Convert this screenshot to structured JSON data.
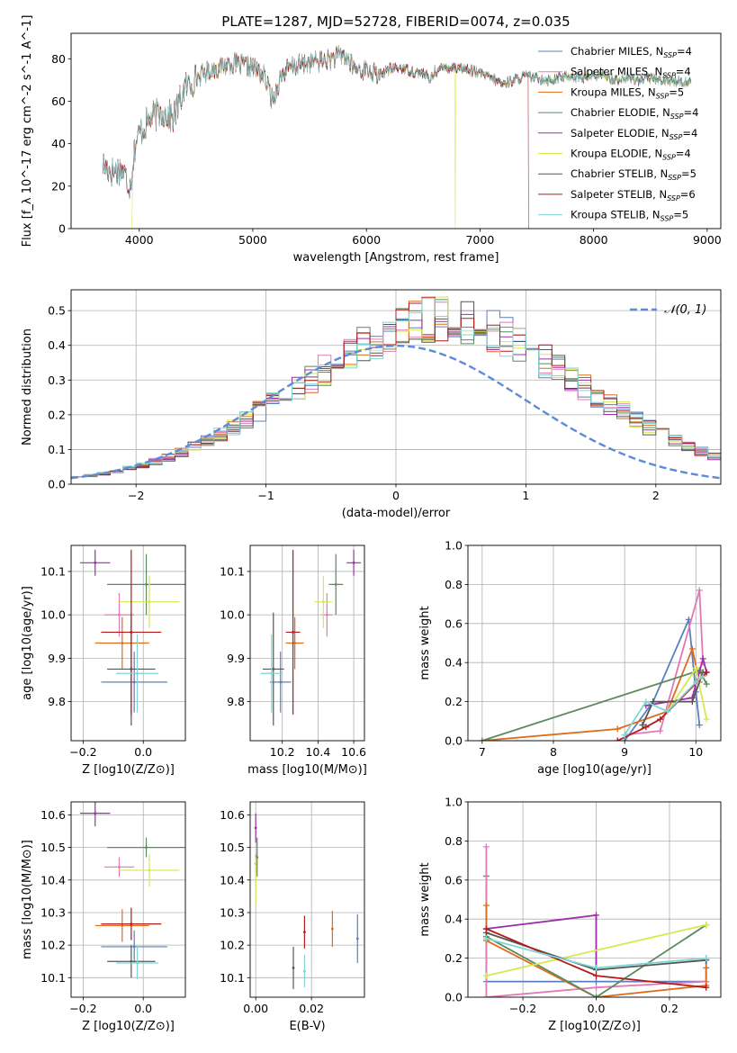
{
  "figure": {
    "title": "PLATE=1287, MJD=52728, FIBERID=0074, z=0.035"
  },
  "palette": {
    "Chabrier MILES": "#5b7fbd",
    "Salpeter MILES": "#e17ab4",
    "Kroupa MILES": "#dd6d1d",
    "Chabrier ELODIE": "#5a8a5e",
    "Salpeter ELODIE": "#9a2fa8",
    "Kroupa ELODIE": "#d7e84e",
    "Chabrier STELIB": "#555555",
    "Salpeter STELIB": "#b31b1b",
    "Kroupa STELIB": "#7fd6d2",
    "normal_curve": "#5b8bd9"
  },
  "chart_data": [
    {
      "id": "spectrum",
      "type": "line",
      "xlabel": "wavelength [Angstrom, rest frame]",
      "ylabel": "Flux [f_λ 10^-17 erg cm^-2 s^-1 A^-1]",
      "xlim": [
        3400,
        9120
      ],
      "ylim": [
        0,
        92
      ],
      "xticks": [
        4000,
        5000,
        6000,
        7000,
        8000,
        9000
      ],
      "yticks": [
        0,
        20,
        40,
        60,
        80
      ],
      "legend_position": "upper right",
      "grid": false,
      "legend": [
        {
          "name": "Chabrier MILES",
          "ssp": "4"
        },
        {
          "name": "Salpeter MILES",
          "ssp": "4"
        },
        {
          "name": "Kroupa MILES",
          "ssp": "5"
        },
        {
          "name": "Chabrier ELODIE",
          "ssp": "4"
        },
        {
          "name": "Salpeter ELODIE",
          "ssp": "4"
        },
        {
          "name": "Kroupa ELODIE",
          "ssp": "4"
        },
        {
          "name": "Chabrier STELIB",
          "ssp": "5"
        },
        {
          "name": "Salpeter STELIB",
          "ssp": "6"
        },
        {
          "name": "Kroupa STELIB",
          "ssp": "5"
        }
      ],
      "continuum": [
        [
          3680,
          30
        ],
        [
          3750,
          27
        ],
        [
          3850,
          28
        ],
        [
          3920,
          20
        ],
        [
          3960,
          38
        ],
        [
          4000,
          45
        ],
        [
          4100,
          52
        ],
        [
          4200,
          55
        ],
        [
          4300,
          52
        ],
        [
          4400,
          66
        ],
        [
          4500,
          71
        ],
        [
          4600,
          74
        ],
        [
          4700,
          76
        ],
        [
          4800,
          78
        ],
        [
          4900,
          77
        ],
        [
          5000,
          76
        ],
        [
          5100,
          72
        ],
        [
          5175,
          60
        ],
        [
          5250,
          72
        ],
        [
          5300,
          75
        ],
        [
          5400,
          77
        ],
        [
          5500,
          78
        ],
        [
          5600,
          79
        ],
        [
          5700,
          80
        ],
        [
          5800,
          82
        ],
        [
          5900,
          75
        ],
        [
          6000,
          75
        ],
        [
          6100,
          72
        ],
        [
          6200,
          75
        ],
        [
          6300,
          76
        ],
        [
          6400,
          74
        ],
        [
          6500,
          73
        ],
        [
          6563,
          70
        ],
        [
          6600,
          74
        ],
        [
          6700,
          76
        ],
        [
          6800,
          76
        ],
        [
          6900,
          75
        ],
        [
          7000,
          73
        ],
        [
          7100,
          71
        ],
        [
          7200,
          68
        ],
        [
          7300,
          70
        ],
        [
          7400,
          72
        ],
        [
          7500,
          71
        ],
        [
          7600,
          70
        ],
        [
          7700,
          71
        ],
        [
          7800,
          72
        ],
        [
          7900,
          71
        ],
        [
          8000,
          72
        ],
        [
          8100,
          72
        ],
        [
          8200,
          70
        ],
        [
          8300,
          71
        ],
        [
          8400,
          70
        ],
        [
          8500,
          71
        ],
        [
          8600,
          70
        ],
        [
          8700,
          70
        ],
        [
          8800,
          69
        ],
        [
          8860,
          70
        ]
      ],
      "ends_um": {
        "Kroupa ELODIE": 3930,
        "Salpeter STELIB": 7430
      }
    },
    {
      "id": "residuals",
      "type": "histogram",
      "xlabel": "(data-model)/error",
      "ylabel": "Normed distribution",
      "xlim": [
        -2.5,
        2.5
      ],
      "ylim": [
        0,
        0.56
      ],
      "xticks": [
        -2,
        -1,
        0,
        1,
        2
      ],
      "yticks": [
        0.0,
        0.1,
        0.2,
        0.3,
        0.4,
        0.5
      ],
      "grid": true,
      "legend_position": "upper right",
      "legend": [
        {
          "name": "𝒩(0, 1)"
        }
      ],
      "bin_width": 0.1,
      "bin_start": -2.5,
      "base_values": [
        0.022,
        0.025,
        0.03,
        0.037,
        0.045,
        0.054,
        0.065,
        0.077,
        0.092,
        0.108,
        0.125,
        0.144,
        0.165,
        0.187,
        0.21,
        0.234,
        0.258,
        0.282,
        0.306,
        0.329,
        0.35,
        0.375,
        0.398,
        0.42,
        0.438,
        0.455,
        0.467,
        0.475,
        0.478,
        0.476,
        0.47,
        0.459,
        0.443,
        0.425,
        0.403,
        0.38,
        0.356,
        0.331,
        0.306,
        0.28,
        0.256,
        0.232,
        0.208,
        0.186,
        0.165,
        0.145,
        0.127,
        0.111,
        0.095,
        0.081
      ]
    },
    {
      "id": "age-vs-Z",
      "type": "scatter",
      "xlabel": "Z [log10(Z/Z⊙)]",
      "ylabel": "age  [log10(age/yr)]",
      "xlim": [
        -0.24,
        0.14
      ],
      "ylim": [
        9.71,
        10.16
      ],
      "xticks": [
        -0.2,
        0.0
      ],
      "yticks": [
        9.8,
        9.9,
        10.0,
        10.1
      ],
      "grid": true,
      "points": [
        {
          "model": "Chabrier MILES",
          "x": -0.03,
          "xerr": 0.11,
          "y": 9.845,
          "yerr": 0.07
        },
        {
          "model": "Salpeter MILES",
          "x": -0.08,
          "xerr": 0.05,
          "y": 10.0,
          "yerr": 0.05
        },
        {
          "model": "Kroupa MILES",
          "x": -0.07,
          "xerr": 0.09,
          "y": 9.935,
          "yerr": 0.06
        },
        {
          "model": "Chabrier ELODIE",
          "x": 0.01,
          "xerr": 0.13,
          "y": 10.07,
          "yerr": 0.07
        },
        {
          "model": "Salpeter ELODIE",
          "x": -0.16,
          "xerr": 0.05,
          "y": 10.12,
          "yerr": 0.03
        },
        {
          "model": "Kroupa ELODIE",
          "x": 0.02,
          "xerr": 0.1,
          "y": 10.03,
          "yerr": 0.06
        },
        {
          "model": "Chabrier STELIB",
          "x": -0.04,
          "xerr": 0.08,
          "y": 9.875,
          "yerr": 0.13
        },
        {
          "model": "Salpeter STELIB",
          "x": -0.04,
          "xerr": 0.1,
          "y": 9.96,
          "yerr": 0.19
        },
        {
          "model": "Kroupa STELIB",
          "x": -0.02,
          "xerr": 0.07,
          "y": 9.865,
          "yerr": 0.09
        }
      ]
    },
    {
      "id": "age-vs-mass",
      "type": "scatter",
      "xlabel": "mass [log10(M/M⊙)]",
      "ylabel": "",
      "xlim": [
        10.02,
        10.66
      ],
      "ylim": [
        9.71,
        10.16
      ],
      "xticks": [
        10.2,
        10.4,
        10.6
      ],
      "yticks": [
        9.8,
        9.9,
        10.0,
        10.1
      ],
      "grid": true,
      "points": [
        {
          "model": "Chabrier MILES",
          "x": 10.19,
          "xerr": 0.06,
          "y": 9.845,
          "yerr": 0.07
        },
        {
          "model": "Salpeter MILES",
          "x": 10.45,
          "xerr": 0.03,
          "y": 10.0,
          "yerr": 0.05
        },
        {
          "model": "Kroupa MILES",
          "x": 10.27,
          "xerr": 0.05,
          "y": 9.935,
          "yerr": 0.06
        },
        {
          "model": "Chabrier ELODIE",
          "x": 10.5,
          "xerr": 0.04,
          "y": 10.07,
          "yerr": 0.07
        },
        {
          "model": "Salpeter ELODIE",
          "x": 10.6,
          "xerr": 0.04,
          "y": 10.12,
          "yerr": 0.03
        },
        {
          "model": "Kroupa ELODIE",
          "x": 10.43,
          "xerr": 0.05,
          "y": 10.03,
          "yerr": 0.06
        },
        {
          "model": "Chabrier STELIB",
          "x": 10.15,
          "xerr": 0.06,
          "y": 9.875,
          "yerr": 0.13
        },
        {
          "model": "Salpeter STELIB",
          "x": 10.26,
          "xerr": 0.04,
          "y": 9.96,
          "yerr": 0.19
        },
        {
          "model": "Kroupa STELIB",
          "x": 10.14,
          "xerr": 0.06,
          "y": 9.865,
          "yerr": 0.09
        }
      ]
    },
    {
      "id": "mass-weight-vs-age",
      "type": "line",
      "xlabel": "age  [log10(age/yr)]",
      "ylabel": "mass weight",
      "xlim": [
        6.8,
        10.35
      ],
      "ylim": [
        0,
        1
      ],
      "xticks": [
        7,
        8,
        9,
        10
      ],
      "yticks": [
        0.0,
        0.2,
        0.4,
        0.6,
        0.8,
        1.0
      ],
      "grid": true,
      "series": [
        {
          "model": "Chabrier MILES",
          "x": [
            9.0,
            9.4,
            9.9,
            10.0,
            10.05
          ],
          "y": [
            0.0,
            0.2,
            0.62,
            0.25,
            0.08
          ]
        },
        {
          "model": "Salpeter MILES",
          "x": [
            9.0,
            9.5,
            10.05,
            10.1
          ],
          "y": [
            0.03,
            0.05,
            0.77,
            0.4
          ]
        },
        {
          "model": "Kroupa MILES",
          "x": [
            7.0,
            8.9,
            9.6,
            9.95,
            10.05
          ],
          "y": [
            0.0,
            0.06,
            0.15,
            0.47,
            0.3
          ]
        },
        {
          "model": "Chabrier ELODIE",
          "x": [
            7.0,
            10.05,
            10.15
          ],
          "y": [
            0.0,
            0.36,
            0.29
          ]
        },
        {
          "model": "Salpeter ELODIE",
          "x": [
            9.3,
            9.95,
            10.1,
            10.15
          ],
          "y": [
            0.18,
            0.22,
            0.42,
            0.35
          ]
        },
        {
          "model": "Kroupa ELODIE",
          "x": [
            9.6,
            10.0,
            10.15
          ],
          "y": [
            0.15,
            0.37,
            0.11
          ]
        },
        {
          "model": "Chabrier STELIB",
          "x": [
            9.25,
            9.4,
            9.95,
            10.1
          ],
          "y": [
            0.08,
            0.2,
            0.2,
            0.35
          ]
        },
        {
          "model": "Salpeter STELIB",
          "x": [
            8.9,
            9.3,
            9.5,
            10.1,
            10.15
          ],
          "y": [
            0.0,
            0.07,
            0.11,
            0.33,
            0.35
          ]
        },
        {
          "model": "Kroupa STELIB",
          "x": [
            9.0,
            9.3,
            9.6,
            10.0,
            10.1
          ],
          "y": [
            0.03,
            0.2,
            0.15,
            0.3,
            0.33
          ]
        }
      ]
    },
    {
      "id": "mass-vs-Z",
      "type": "scatter",
      "xlabel": "Z [log10(Z/Z⊙)]",
      "ylabel": "mass [log10(M/M⊙)]",
      "xlim": [
        -0.24,
        0.14
      ],
      "ylim": [
        10.04,
        10.64
      ],
      "xticks": [
        -0.2,
        0.0
      ],
      "yticks": [
        10.1,
        10.2,
        10.3,
        10.4,
        10.5,
        10.6
      ],
      "grid": true,
      "points": [
        {
          "model": "Chabrier MILES",
          "x": -0.03,
          "xerr": 0.11,
          "y": 10.195,
          "yerr": 0.05
        },
        {
          "model": "Salpeter MILES",
          "x": -0.08,
          "xerr": 0.05,
          "y": 10.44,
          "yerr": 0.03
        },
        {
          "model": "Kroupa MILES",
          "x": -0.07,
          "xerr": 0.09,
          "y": 10.26,
          "yerr": 0.05
        },
        {
          "model": "Chabrier ELODIE",
          "x": 0.01,
          "xerr": 0.13,
          "y": 10.5,
          "yerr": 0.03
        },
        {
          "model": "Salpeter ELODIE",
          "x": -0.16,
          "xerr": 0.05,
          "y": 10.605,
          "yerr": 0.04
        },
        {
          "model": "Kroupa ELODIE",
          "x": 0.02,
          "xerr": 0.1,
          "y": 10.43,
          "yerr": 0.05
        },
        {
          "model": "Chabrier STELIB",
          "x": -0.04,
          "xerr": 0.08,
          "y": 10.15,
          "yerr": 0.05
        },
        {
          "model": "Salpeter STELIB",
          "x": -0.04,
          "xerr": 0.1,
          "y": 10.265,
          "yerr": 0.05
        },
        {
          "model": "Kroupa STELIB",
          "x": -0.02,
          "xerr": 0.07,
          "y": 10.145,
          "yerr": 0.05
        }
      ]
    },
    {
      "id": "mass-vs-ebv",
      "type": "scatter",
      "xlabel": "E(B-V)",
      "ylabel": "",
      "xlim": [
        -0.002,
        0.039
      ],
      "ylim": [
        10.04,
        10.64
      ],
      "xticks": [
        0.0,
        0.02
      ],
      "yticks": [
        10.1,
        10.2,
        10.3,
        10.4,
        10.5,
        10.6
      ],
      "grid": true,
      "points": [
        {
          "model": "Chabrier MILES",
          "x": 0.0365,
          "xerr": 0.0,
          "y": 10.22,
          "yerr": 0.075
        },
        {
          "model": "Salpeter MILES",
          "x": 0.0,
          "xerr": 0.0,
          "y": 10.45,
          "yerr": 0.03
        },
        {
          "model": "Kroupa MILES",
          "x": 0.0275,
          "xerr": 0.0,
          "y": 10.25,
          "yerr": 0.055
        },
        {
          "model": "Chabrier ELODIE",
          "x": 0.0005,
          "xerr": 0.0,
          "y": 10.47,
          "yerr": 0.06
        },
        {
          "model": "Salpeter ELODIE",
          "x": 0.0,
          "xerr": 0.0,
          "y": 10.56,
          "yerr": 0.045
        },
        {
          "model": "Kroupa ELODIE",
          "x": 0.0,
          "xerr": 0.0,
          "y": 10.4,
          "yerr": 0.07
        },
        {
          "model": "Chabrier STELIB",
          "x": 0.0135,
          "xerr": 0.0,
          "y": 10.13,
          "yerr": 0.065
        },
        {
          "model": "Salpeter STELIB",
          "x": 0.0175,
          "xerr": 0.0,
          "y": 10.24,
          "yerr": 0.05
        },
        {
          "model": "Kroupa STELIB",
          "x": 0.0175,
          "xerr": 0.0,
          "y": 10.12,
          "yerr": 0.05
        }
      ]
    },
    {
      "id": "mass-weight-vs-Z",
      "type": "line",
      "xlabel": "Z [log10(Z/Z⊙)]",
      "ylabel": "mass weight",
      "xlim": [
        -0.35,
        0.34
      ],
      "ylim": [
        0,
        1
      ],
      "xticks": [
        -0.2,
        0.0,
        0.2
      ],
      "yticks": [
        0.0,
        0.2,
        0.4,
        0.6,
        0.8,
        1.0
      ],
      "grid": true,
      "series": [
        {
          "model": "Chabrier MILES",
          "x": [
            -0.3,
            -0.3,
            0.0,
            0.3,
            0.3
          ],
          "y": [
            0.62,
            0.08,
            0.08,
            0.08,
            0.2
          ]
        },
        {
          "model": "Salpeter MILES",
          "x": [
            -0.3,
            -0.3,
            0.0,
            0.3,
            0.3
          ],
          "y": [
            0.77,
            0.0,
            0.05,
            0.08,
            0.05
          ]
        },
        {
          "model": "Kroupa MILES",
          "x": [
            -0.3,
            -0.3,
            0.0,
            0.3,
            0.3
          ],
          "y": [
            0.47,
            0.29,
            0.0,
            0.06,
            0.15
          ]
        },
        {
          "model": "Chabrier ELODIE",
          "x": [
            -0.3,
            0.0,
            0.3
          ],
          "y": [
            0.31,
            0.0,
            0.37
          ]
        },
        {
          "model": "Salpeter ELODIE",
          "x": [
            -0.3,
            0.0,
            0.0
          ],
          "y": [
            0.35,
            0.42,
            0.15
          ]
        },
        {
          "model": "Kroupa ELODIE",
          "x": [
            -0.3,
            0.3
          ],
          "y": [
            0.11,
            0.37
          ]
        },
        {
          "model": "Chabrier STELIB",
          "x": [
            -0.3,
            0.0,
            0.3
          ],
          "y": [
            0.33,
            0.14,
            0.19
          ]
        },
        {
          "model": "Salpeter STELIB",
          "x": [
            -0.3,
            0.0,
            0.3
          ],
          "y": [
            0.35,
            0.11,
            0.05
          ]
        },
        {
          "model": "Kroupa STELIB",
          "x": [
            -0.3,
            0.0,
            0.3
          ],
          "y": [
            0.3,
            0.15,
            0.2
          ]
        }
      ]
    }
  ]
}
